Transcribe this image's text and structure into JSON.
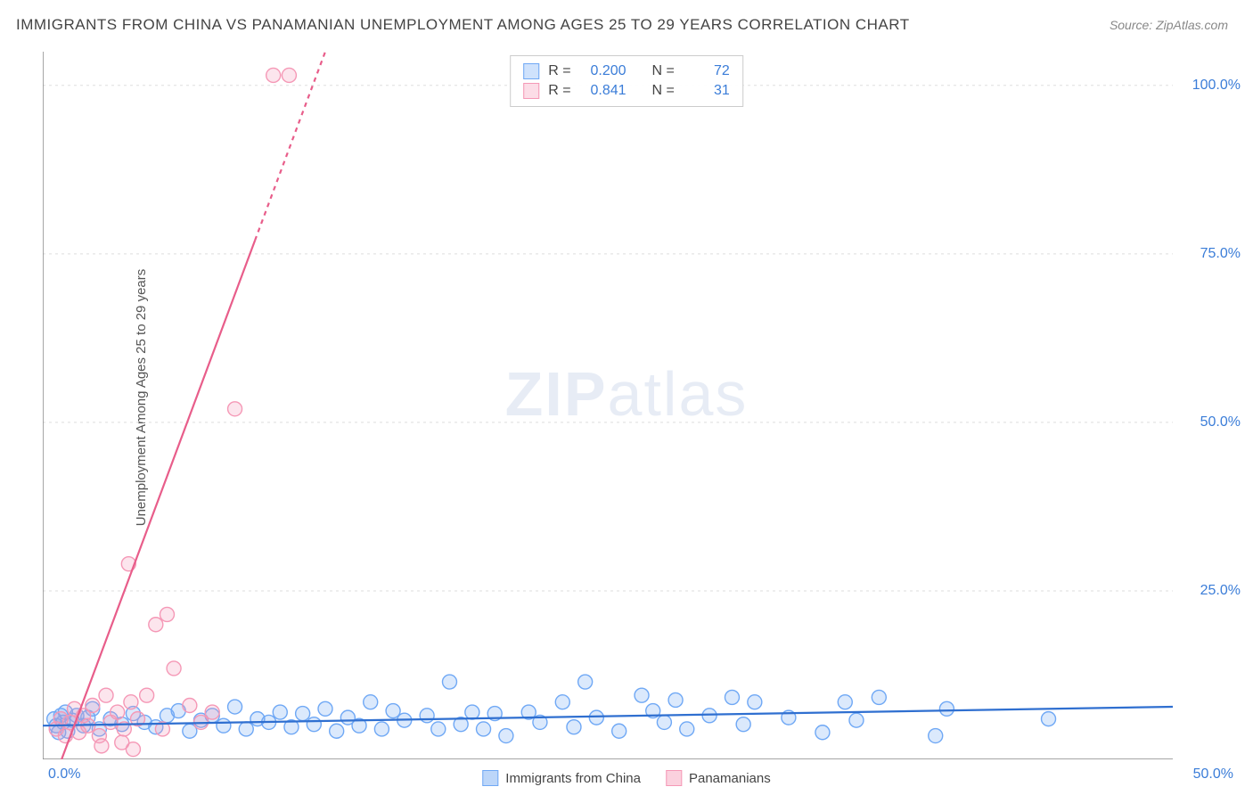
{
  "title": "IMMIGRANTS FROM CHINA VS PANAMANIAN UNEMPLOYMENT AMONG AGES 25 TO 29 YEARS CORRELATION CHART",
  "source": "Source: ZipAtlas.com",
  "watermark_a": "ZIP",
  "watermark_b": "atlas",
  "y_axis_label": "Unemployment Among Ages 25 to 29 years",
  "chart": {
    "type": "scatter",
    "background_color": "#ffffff",
    "grid_color": "#dddddd",
    "axis_color": "#888888",
    "xlim": [
      0,
      50
    ],
    "ylim": [
      0,
      105
    ],
    "x_ticks": [
      0,
      50
    ],
    "x_tick_labels": [
      "0.0%",
      "50.0%"
    ],
    "y_ticks": [
      25,
      50,
      75,
      100
    ],
    "y_tick_labels": [
      "25.0%",
      "50.0%",
      "75.0%",
      "100.0%"
    ],
    "tick_color": "#3b7dd8",
    "tick_fontsize": 16,
    "marker_radius": 8,
    "marker_stroke_width": 1.4,
    "marker_fill_opacity": 0.25,
    "line_width": 2.2,
    "series": [
      {
        "name": "Immigrants from China",
        "color": "#6fa8f5",
        "line_color": "#2f6fd0",
        "R": "0.200",
        "N": "72",
        "trend": {
          "x1": 0,
          "y1": 5.0,
          "x2": 50,
          "y2": 7.8
        },
        "points": [
          [
            0.5,
            6
          ],
          [
            0.6,
            5
          ],
          [
            0.7,
            4
          ],
          [
            0.8,
            6.5
          ],
          [
            0.9,
            5.5
          ],
          [
            1.0,
            7
          ],
          [
            1.1,
            4.2
          ],
          [
            1.3,
            5.8
          ],
          [
            1.5,
            6.5
          ],
          [
            1.8,
            5
          ],
          [
            2.0,
            6.2
          ],
          [
            2.2,
            7.5
          ],
          [
            2.5,
            4.5
          ],
          [
            3.0,
            6
          ],
          [
            3.5,
            5.2
          ],
          [
            4.0,
            6.8
          ],
          [
            4.5,
            5.5
          ],
          [
            5.0,
            4.8
          ],
          [
            5.5,
            6.5
          ],
          [
            6.0,
            7.2
          ],
          [
            6.5,
            4.2
          ],
          [
            7.0,
            5.8
          ],
          [
            7.5,
            6.5
          ],
          [
            8.0,
            5
          ],
          [
            8.5,
            7.8
          ],
          [
            9.0,
            4.5
          ],
          [
            9.5,
            6
          ],
          [
            10.0,
            5.5
          ],
          [
            10.5,
            7
          ],
          [
            11.0,
            4.8
          ],
          [
            11.5,
            6.8
          ],
          [
            12.0,
            5.2
          ],
          [
            12.5,
            7.5
          ],
          [
            13.0,
            4.2
          ],
          [
            13.5,
            6.2
          ],
          [
            14.0,
            5
          ],
          [
            14.5,
            8.5
          ],
          [
            15.0,
            4.5
          ],
          [
            15.5,
            7.2
          ],
          [
            16.0,
            5.8
          ],
          [
            17.0,
            6.5
          ],
          [
            17.5,
            4.5
          ],
          [
            18.0,
            11.5
          ],
          [
            18.5,
            5.2
          ],
          [
            19.0,
            7
          ],
          [
            19.5,
            4.5
          ],
          [
            20.0,
            6.8
          ],
          [
            20.5,
            3.5
          ],
          [
            21.5,
            7
          ],
          [
            22.0,
            5.5
          ],
          [
            23.0,
            8.5
          ],
          [
            23.5,
            4.8
          ],
          [
            24.0,
            11.5
          ],
          [
            24.5,
            6.2
          ],
          [
            25.5,
            4.2
          ],
          [
            26.5,
            9.5
          ],
          [
            27.0,
            7.2
          ],
          [
            27.5,
            5.5
          ],
          [
            28.0,
            8.8
          ],
          [
            28.5,
            4.5
          ],
          [
            29.5,
            6.5
          ],
          [
            30.5,
            9.2
          ],
          [
            31.0,
            5.2
          ],
          [
            31.5,
            8.5
          ],
          [
            33.0,
            6.2
          ],
          [
            34.5,
            4.0
          ],
          [
            35.5,
            8.5
          ],
          [
            36.0,
            5.8
          ],
          [
            37.0,
            9.2
          ],
          [
            39.5,
            3.5
          ],
          [
            40.0,
            7.5
          ],
          [
            44.5,
            6.0
          ]
        ]
      },
      {
        "name": "Panamanians",
        "color": "#f598b6",
        "line_color": "#e85d8a",
        "R": "0.841",
        "N": "31",
        "trend": {
          "x1": 0.5,
          "y1": -3,
          "x2": 12.5,
          "y2": 105
        },
        "points": [
          [
            0.6,
            4.5
          ],
          [
            0.8,
            6
          ],
          [
            1.0,
            3.5
          ],
          [
            1.2,
            5.5
          ],
          [
            1.4,
            7.5
          ],
          [
            1.6,
            4
          ],
          [
            1.8,
            6.5
          ],
          [
            2.0,
            5
          ],
          [
            2.2,
            8
          ],
          [
            2.5,
            3.5
          ],
          [
            2.8,
            9.5
          ],
          [
            3.0,
            5.5
          ],
          [
            3.3,
            7
          ],
          [
            3.6,
            4.5
          ],
          [
            3.9,
            8.5
          ],
          [
            3.5,
            2.5
          ],
          [
            2.6,
            2.0
          ],
          [
            4.0,
            1.5
          ],
          [
            4.2,
            6
          ],
          [
            4.6,
            9.5
          ],
          [
            5.0,
            20
          ],
          [
            5.3,
            4.5
          ],
          [
            5.5,
            21.5
          ],
          [
            5.8,
            13.5
          ],
          [
            3.8,
            29
          ],
          [
            6.5,
            8
          ],
          [
            7.0,
            5.5
          ],
          [
            7.5,
            7
          ],
          [
            8.5,
            52
          ],
          [
            10.2,
            101.5
          ],
          [
            10.9,
            101.5
          ]
        ]
      }
    ]
  },
  "stats_labels": {
    "R": "R =",
    "N": "N ="
  },
  "bottom_legend": {
    "items": [
      {
        "label": "Immigrants from China",
        "fill": "#bcd6f9",
        "stroke": "#6fa8f5"
      },
      {
        "label": "Panamanians",
        "fill": "#fbd1de",
        "stroke": "#f598b6"
      }
    ]
  }
}
